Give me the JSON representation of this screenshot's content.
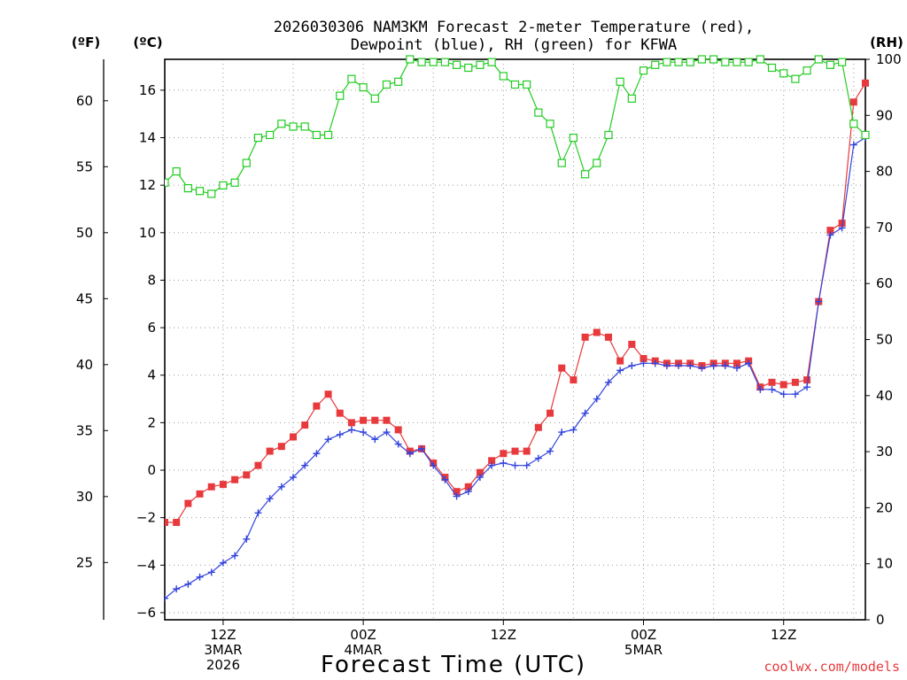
{
  "chart_data": {
    "type": "line",
    "title_line1": "2026030306 NAM3KM Forecast 2-meter Temperature (red),",
    "title_line2": "Dewpoint (blue), RH (green) for KFWA",
    "units": {
      "fahrenheit": "(ºF)",
      "celsius": "(ºC)",
      "rh": "(RH)"
    },
    "xlabel": "Forecast Time (UTC)",
    "credit": "coolwx.com/models",
    "x_start_hour": 7,
    "x_end_hour": 67,
    "celsius_range": [
      -6.3,
      17.3
    ],
    "rh_range": [
      0,
      100
    ],
    "celsius_ticks": [
      "-6",
      "-4",
      "-2",
      "0",
      "2",
      "4",
      "6",
      "8",
      "10",
      "12",
      "14",
      "16"
    ],
    "fahrenheit_ticks": [
      "25",
      "30",
      "35",
      "40",
      "45",
      "50",
      "55",
      "60"
    ],
    "rh_ticks": [
      "0",
      "10",
      "20",
      "30",
      "40",
      "50",
      "60",
      "70",
      "80",
      "90",
      "100"
    ],
    "x_ticks": [
      {
        "hour": 12,
        "lines": [
          "12Z",
          "3MAR",
          "2026"
        ]
      },
      {
        "hour": 24,
        "lines": [
          "00Z",
          "4MAR"
        ]
      },
      {
        "hour": 36,
        "lines": [
          "12Z"
        ]
      },
      {
        "hour": 48,
        "lines": [
          "00Z",
          "5MAR"
        ]
      },
      {
        "hour": 60,
        "lines": [
          "12Z"
        ]
      }
    ],
    "series": [
      {
        "name": "2-meter Temperature",
        "unit": "C",
        "color": "#e8393c",
        "marker": "filled-square",
        "values": [
          -2.2,
          -2.2,
          -1.4,
          -1.0,
          -0.7,
          -0.6,
          -0.4,
          -0.2,
          0.2,
          0.8,
          1.0,
          1.4,
          1.9,
          2.7,
          3.2,
          2.4,
          2.0,
          2.1,
          2.1,
          2.1,
          1.7,
          0.8,
          0.9,
          0.3,
          -0.3,
          -0.9,
          -0.7,
          -0.1,
          0.4,
          0.7,
          0.8,
          0.8,
          1.8,
          2.4,
          4.3,
          3.8,
          5.6,
          5.8,
          5.6,
          4.6,
          5.3,
          4.7,
          4.6,
          4.5,
          4.5,
          4.5,
          4.4,
          4.5,
          4.5,
          4.5,
          4.6,
          3.5,
          3.7,
          3.6,
          3.7,
          3.8,
          7.1,
          10.1,
          10.4,
          15.5,
          16.3
        ]
      },
      {
        "name": "Dewpoint",
        "unit": "C",
        "color": "#3344dd",
        "marker": "plus",
        "values": [
          -5.4,
          -5.0,
          -4.8,
          -4.5,
          -4.3,
          -3.9,
          -3.6,
          -2.9,
          -1.8,
          -1.2,
          -0.7,
          -0.3,
          0.2,
          0.7,
          1.3,
          1.5,
          1.7,
          1.6,
          1.3,
          1.6,
          1.1,
          0.7,
          0.9,
          0.2,
          -0.4,
          -1.1,
          -0.9,
          -0.3,
          0.2,
          0.3,
          0.2,
          0.2,
          0.5,
          0.8,
          1.6,
          1.7,
          2.4,
          3.0,
          3.7,
          4.2,
          4.4,
          4.5,
          4.5,
          4.4,
          4.4,
          4.4,
          4.3,
          4.4,
          4.4,
          4.3,
          4.5,
          3.4,
          3.4,
          3.2,
          3.2,
          3.5,
          7.1,
          9.9,
          10.2,
          13.7,
          14.0
        ]
      },
      {
        "name": "RH",
        "unit": "%",
        "color": "#22cc22",
        "marker": "open-square",
        "values": [
          78,
          80,
          77,
          76.5,
          76,
          77.5,
          78,
          81.5,
          86,
          86.5,
          88.5,
          88,
          88,
          86.5,
          86.5,
          93.5,
          96.5,
          95,
          93,
          95.5,
          96,
          100,
          99.5,
          99.5,
          99.5,
          99,
          98.5,
          99,
          99.5,
          97,
          95.5,
          95.5,
          90.5,
          88.5,
          81.5,
          86,
          79.5,
          81.5,
          86.5,
          96,
          93,
          98,
          99,
          99.5,
          99.5,
          99.5,
          100,
          100,
          99.5,
          99.5,
          99.5,
          100,
          98.5,
          97.5,
          96.5,
          98,
          100,
          99,
          99.5,
          88.5,
          86.5
        ]
      }
    ]
  }
}
